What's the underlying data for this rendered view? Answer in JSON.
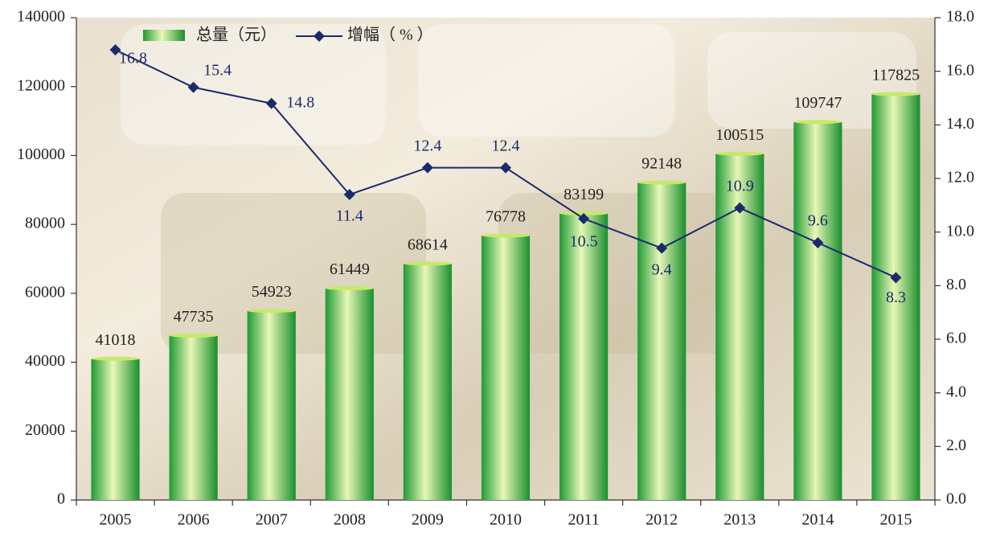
{
  "chart_data": {
    "type": "bar",
    "categories": [
      "2005",
      "2006",
      "2007",
      "2008",
      "2009",
      "2010",
      "2011",
      "2012",
      "2013",
      "2014",
      "2015"
    ],
    "series": [
      {
        "name": "总量（元）",
        "type": "bar",
        "color": "#2fae3c",
        "values": [
          41018,
          47735,
          54923,
          61449,
          68614,
          76778,
          83199,
          92148,
          100515,
          109747,
          117825
        ]
      },
      {
        "name": "增幅（ % ）",
        "type": "line",
        "axis": "y2",
        "color": "#1b2a6b",
        "values": [
          16.8,
          15.4,
          14.8,
          11.4,
          12.4,
          12.4,
          10.5,
          9.4,
          10.9,
          9.6,
          8.3
        ]
      }
    ],
    "ylim": [
      0,
      140000
    ],
    "yticks": [
      0,
      20000,
      40000,
      60000,
      80000,
      100000,
      120000,
      140000
    ],
    "y2lim": [
      0,
      18
    ],
    "y2ticks": [
      {
        "value": 0,
        "label": "0.0"
      },
      {
        "value": 2,
        "label": "2.0"
      },
      {
        "value": 4,
        "label": "4.0"
      },
      {
        "value": 6,
        "label": "6.0"
      },
      {
        "value": 8,
        "label": "8.0"
      },
      {
        "value": 10,
        "label": "10.0"
      },
      {
        "value": 12,
        "label": "12.0"
      },
      {
        "value": 14,
        "label": "14.0"
      },
      {
        "value": 16,
        "label": "16.0"
      },
      {
        "value": 18,
        "label": "18.0"
      }
    ],
    "grid": false
  }
}
